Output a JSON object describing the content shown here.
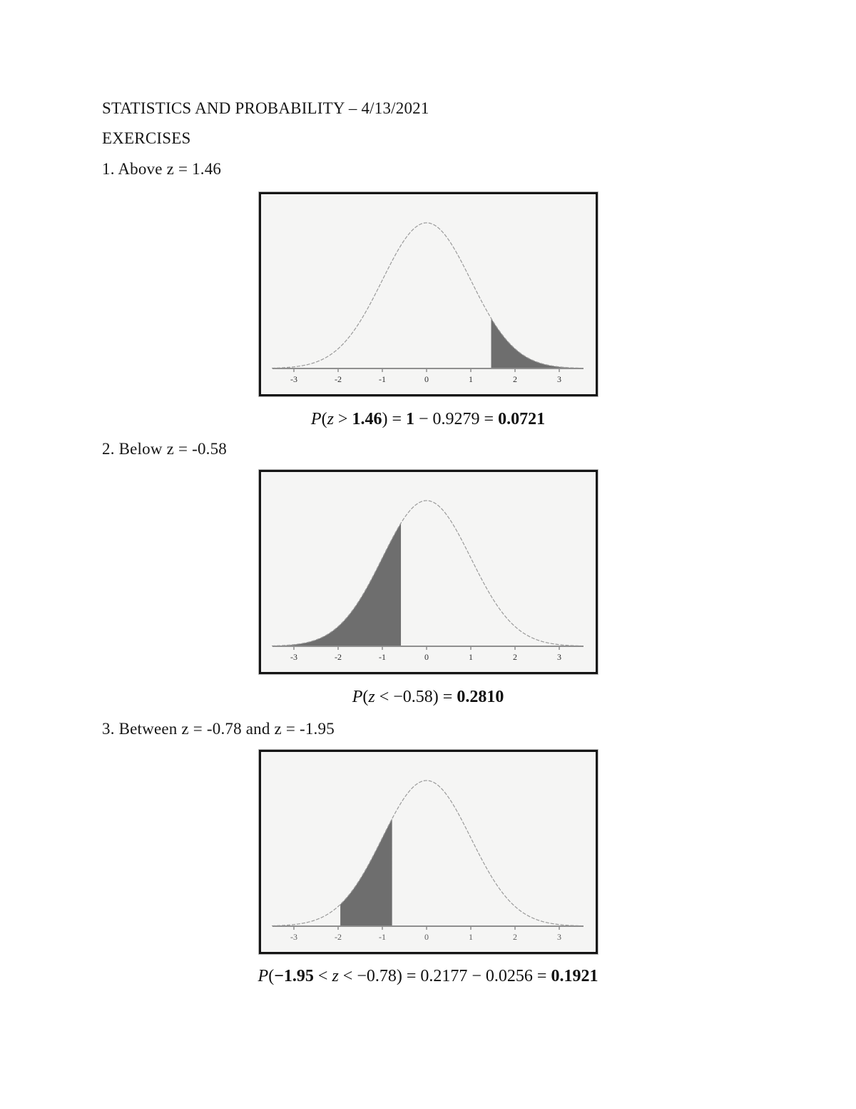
{
  "document": {
    "title": "STATISTICS AND PROBABILITY – 4/13/2021",
    "section": "EXERCISES"
  },
  "exercises": [
    {
      "label": "1. Above z = 1.46",
      "formula": [
        {
          "t": "P",
          "s": "i"
        },
        {
          "t": "(",
          "s": ""
        },
        {
          "t": "z",
          "s": "i"
        },
        {
          "t": " > ",
          "s": ""
        },
        {
          "t": "1.46",
          "s": "b"
        },
        {
          "t": ") = ",
          "s": ""
        },
        {
          "t": "1",
          "s": "b"
        },
        {
          "t": " − 0.9279 = ",
          "s": ""
        },
        {
          "t": "0.0721",
          "s": "b"
        }
      ],
      "chart": {
        "type": "area",
        "description": "standard normal curve, right tail shaded above z = 1.46",
        "shade_z_from": 1.46,
        "shade_z_to": 3.5,
        "x_range": [
          -3.5,
          3.5
        ],
        "x_ticks": [
          -3,
          -2,
          -1,
          0,
          1,
          2,
          3
        ],
        "shade_color": "#6e6e6e",
        "curve_color": "#9a9a9a",
        "axis_color": "#8f8f8f",
        "tick_color": "#2e2e2e"
      }
    },
    {
      "label": "2. Below z = -0.58",
      "formula": [
        {
          "t": "P",
          "s": "i"
        },
        {
          "t": "(",
          "s": ""
        },
        {
          "t": "z",
          "s": "i"
        },
        {
          "t": " < −0.58) = ",
          "s": ""
        },
        {
          "t": "0.2810",
          "s": "b"
        }
      ],
      "chart": {
        "type": "area",
        "description": "standard normal curve, left tail shaded below z = -0.58",
        "shade_z_from": -3.5,
        "shade_z_to": -0.58,
        "x_range": [
          -3.5,
          3.5
        ],
        "x_ticks": [
          -3,
          -2,
          -1,
          0,
          1,
          2,
          3
        ],
        "shade_color": "#6e6e6e",
        "curve_color": "#9a9a9a",
        "axis_color": "#8f8f8f",
        "tick_color": "#2e2e2e"
      }
    },
    {
      "label": "3. Between z = -0.78 and z = -1.95",
      "formula": [
        {
          "t": "P",
          "s": "i"
        },
        {
          "t": "(",
          "s": ""
        },
        {
          "t": "−1.95",
          "s": "b"
        },
        {
          "t": " < ",
          "s": ""
        },
        {
          "t": "z",
          "s": "i"
        },
        {
          "t": " < −0.78) = 0.2177 − 0.0256 = ",
          "s": ""
        },
        {
          "t": "0.1921",
          "s": "b"
        }
      ],
      "chart": {
        "type": "area",
        "description": "standard normal curve, region shaded between z = -1.95 and z = -0.78",
        "shade_z_from": -1.95,
        "shade_z_to": -0.78,
        "x_range": [
          -3.5,
          3.5
        ],
        "x_ticks": [
          -3,
          -2,
          -1,
          0,
          1,
          2,
          3
        ],
        "shade_color": "#6e6e6e",
        "curve_color": "#9a9a9a",
        "axis_color": "#8f8f8f",
        "tick_color": "#5c5c5c"
      }
    }
  ]
}
